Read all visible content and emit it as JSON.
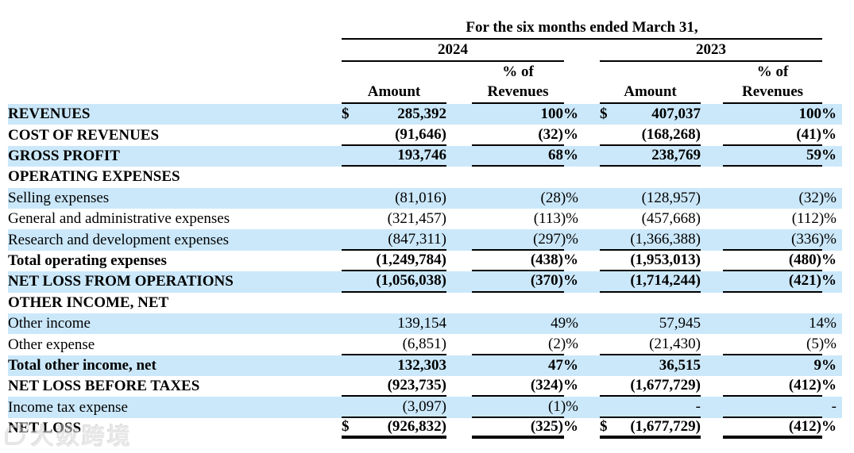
{
  "title": "For the six months ended March 31,",
  "columns": {
    "year_2024": "2024",
    "year_2023": "2023",
    "amount": "Amount",
    "pct_line1": "% of",
    "pct_line2": "Revenues"
  },
  "rows": [
    {
      "label": "REVENUES",
      "indent": 0,
      "bold": true,
      "shaded": true,
      "d1": "$",
      "a1": "285,392",
      "p1": "100%",
      "d2": "$",
      "a2": "407,037",
      "p2": "100%",
      "rule": "none"
    },
    {
      "label": "COST OF REVENUES",
      "indent": 0,
      "bold": true,
      "shaded": false,
      "d1": "",
      "a1": "(91,646)",
      "p1": "(32)%",
      "d2": "",
      "a2": "(168,268)",
      "p2": "(41)%",
      "rule": "single"
    },
    {
      "label": "GROSS PROFIT",
      "indent": 0,
      "bold": true,
      "shaded": true,
      "d1": "",
      "a1": "193,746",
      "p1": "68%",
      "d2": "",
      "a2": "238,769",
      "p2": "59%",
      "rule": "single"
    },
    {
      "label": "OPERATING EXPENSES",
      "indent": 0,
      "bold": true,
      "shaded": false,
      "d1": "",
      "a1": "",
      "p1": "",
      "d2": "",
      "a2": "",
      "p2": "",
      "rule": "none"
    },
    {
      "label": "Selling expenses",
      "indent": 1,
      "bold": false,
      "shaded": true,
      "d1": "",
      "a1": "(81,016)",
      "p1": "(28)%",
      "d2": "",
      "a2": "(128,957)",
      "p2": "(32)%",
      "rule": "none"
    },
    {
      "label": "General and administrative expenses",
      "indent": 1,
      "bold": false,
      "shaded": false,
      "d1": "",
      "a1": "(321,457)",
      "p1": "(113)%",
      "d2": "",
      "a2": "(457,668)",
      "p2": "(112)%",
      "rule": "none"
    },
    {
      "label": "Research and development expenses",
      "indent": 1,
      "bold": false,
      "shaded": true,
      "d1": "",
      "a1": "(847,311)",
      "p1": "(297)%",
      "d2": "",
      "a2": "(1,366,388)",
      "p2": "(336)%",
      "rule": "single"
    },
    {
      "label": "Total operating expenses",
      "indent": 2,
      "bold": true,
      "shaded": false,
      "d1": "",
      "a1": "(1,249,784)",
      "p1": "(438)%",
      "d2": "",
      "a2": "(1,953,013)",
      "p2": "(480)%",
      "rule": "single"
    },
    {
      "label": "NET LOSS FROM OPERATIONS",
      "indent": 0,
      "bold": true,
      "shaded": true,
      "d1": "",
      "a1": "(1,056,038)",
      "p1": "(370)%",
      "d2": "",
      "a2": "(1,714,244)",
      "p2": "(421)%",
      "rule": "single"
    },
    {
      "label": "OTHER INCOME, NET",
      "indent": 0,
      "bold": true,
      "shaded": false,
      "d1": "",
      "a1": "",
      "p1": "",
      "d2": "",
      "a2": "",
      "p2": "",
      "rule": "none"
    },
    {
      "label": "Other income",
      "indent": 1,
      "bold": false,
      "shaded": true,
      "d1": "",
      "a1": "139,154",
      "p1": "49%",
      "d2": "",
      "a2": "57,945",
      "p2": "14%",
      "rule": "none"
    },
    {
      "label": "Other expense",
      "indent": 1,
      "bold": false,
      "shaded": false,
      "d1": "",
      "a1": "(6,851)",
      "p1": "(2)%",
      "d2": "",
      "a2": "(21,430)",
      "p2": "(5)%",
      "rule": "single"
    },
    {
      "label": "Total other income, net",
      "indent": 2,
      "bold": true,
      "shaded": true,
      "d1": "",
      "a1": "132,303",
      "p1": "47%",
      "d2": "",
      "a2": "36,515",
      "p2": "9%",
      "rule": "none"
    },
    {
      "label": "NET LOSS BEFORE TAXES",
      "indent": 0,
      "bold": true,
      "shaded": false,
      "d1": "",
      "a1": "(923,735)",
      "p1": "(324)%",
      "d2": "",
      "a2": "(1,677,729)",
      "p2": "(412)%",
      "rule": "single"
    },
    {
      "label": "Income tax expense",
      "indent": 0,
      "bold": false,
      "shaded": true,
      "d1": "",
      "a1": "(3,097)",
      "p1": "(1)%",
      "d2": "",
      "a2": "-",
      "p2": "-",
      "rule": "single"
    },
    {
      "label": "NET LOSS",
      "indent": 0,
      "bold": true,
      "shaded": false,
      "d1": "$",
      "a1": "(926,832)",
      "p1": "(325)%",
      "d2": "$",
      "a2": "(1,677,729)",
      "p2": "(412)%",
      "rule": "thick"
    }
  ],
  "watermark": {
    "text": "大数跨境"
  },
  "colors": {
    "row_highlight": "#cbe8fa",
    "rule": "#000000",
    "text": "#000000",
    "watermark": "#d2d2d2"
  }
}
